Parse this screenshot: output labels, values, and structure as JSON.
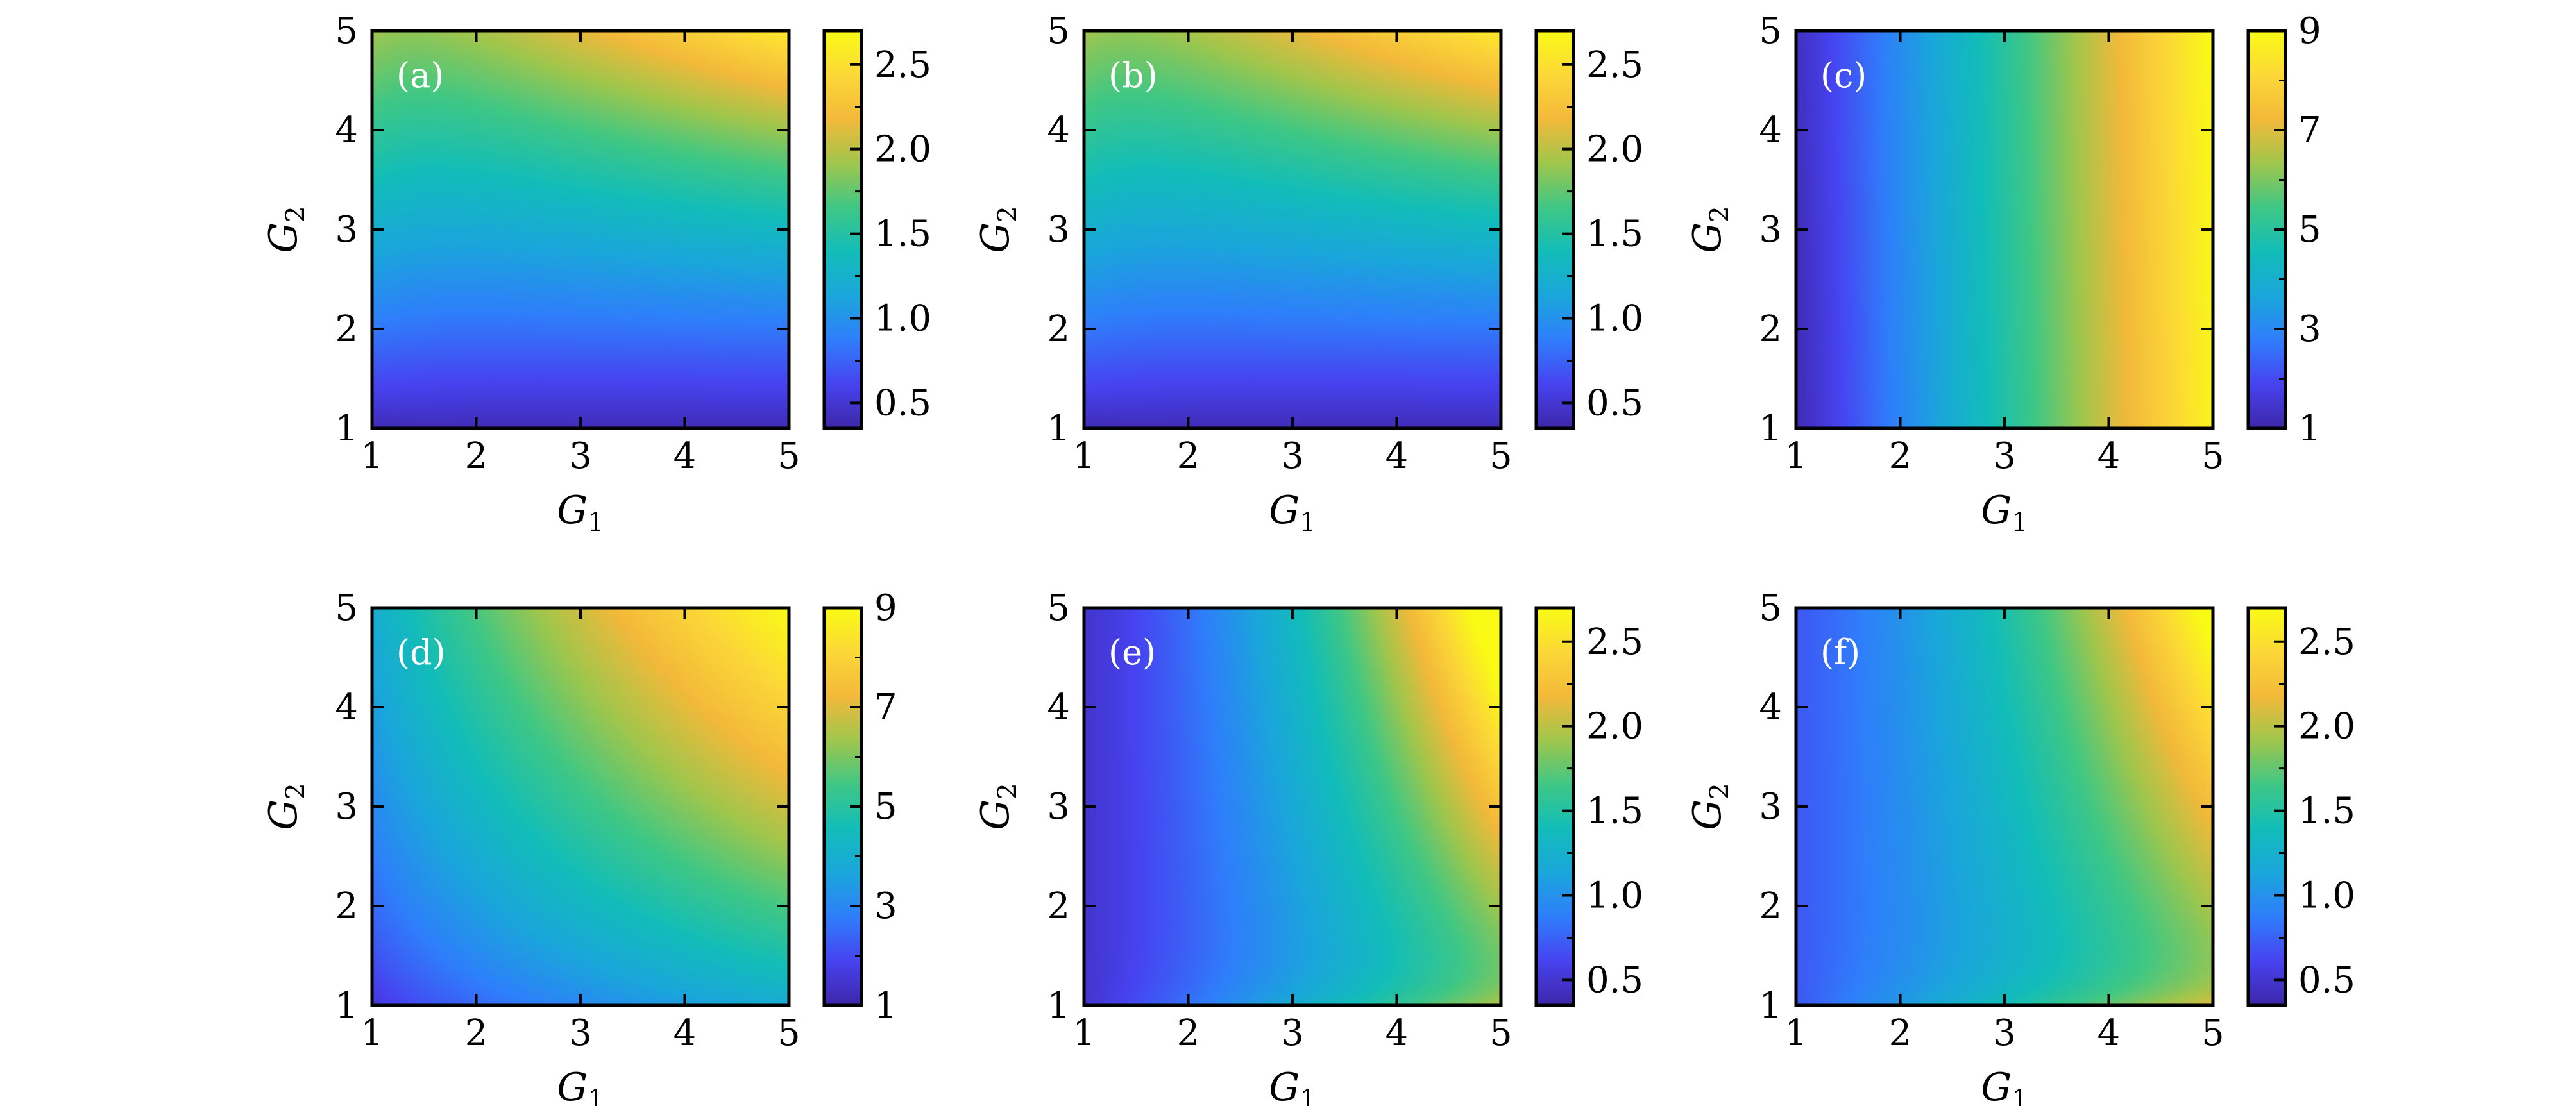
{
  "chart_data": [
    {
      "type": "heatmap",
      "panel_label": "(a)",
      "pattern": "a",
      "xlabel": "G",
      "xlabel_sub": "1",
      "ylabel": "G",
      "ylabel_sub": "2",
      "xlim": [
        1,
        5
      ],
      "ylim": [
        1,
        5
      ],
      "xticks": [
        "1",
        "2",
        "3",
        "4",
        "5"
      ],
      "yticks": [
        "1",
        "2",
        "3",
        "4",
        "5"
      ],
      "colorbar": {
        "range": [
          0.35,
          2.7
        ],
        "ticks": [
          0.5,
          1.0,
          1.5,
          2.0,
          2.5
        ],
        "tick_labels": [
          "0.5",
          "1.0",
          "1.5",
          "2.0",
          "2.5"
        ]
      }
    },
    {
      "type": "heatmap",
      "panel_label": "(b)",
      "pattern": "a",
      "xlabel": "G",
      "xlabel_sub": "1",
      "ylabel": "G",
      "ylabel_sub": "2",
      "xlim": [
        1,
        5
      ],
      "ylim": [
        1,
        5
      ],
      "xticks": [
        "1",
        "2",
        "3",
        "4",
        "5"
      ],
      "yticks": [
        "1",
        "2",
        "3",
        "4",
        "5"
      ],
      "colorbar": {
        "range": [
          0.35,
          2.7
        ],
        "ticks": [
          0.5,
          1.0,
          1.5,
          2.0,
          2.5
        ],
        "tick_labels": [
          "0.5",
          "1.0",
          "1.5",
          "2.0",
          "2.5"
        ]
      }
    },
    {
      "type": "heatmap",
      "panel_label": "(c)",
      "pattern": "c",
      "xlabel": "G",
      "xlabel_sub": "1",
      "ylabel": "G",
      "ylabel_sub": "2",
      "xlim": [
        1,
        5
      ],
      "ylim": [
        1,
        5
      ],
      "xticks": [
        "1",
        "2",
        "3",
        "4",
        "5"
      ],
      "yticks": [
        "1",
        "2",
        "3",
        "4",
        "5"
      ],
      "colorbar": {
        "range": [
          1,
          9
        ],
        "ticks": [
          1,
          3,
          5,
          7,
          9
        ],
        "tick_labels": [
          "1",
          "3",
          "5",
          "7",
          "9"
        ]
      }
    },
    {
      "type": "heatmap",
      "panel_label": "(d)",
      "pattern": "d",
      "xlabel": "G",
      "xlabel_sub": "1",
      "ylabel": "G",
      "ylabel_sub": "2",
      "xlim": [
        1,
        5
      ],
      "ylim": [
        1,
        5
      ],
      "xticks": [
        "1",
        "2",
        "3",
        "4",
        "5"
      ],
      "yticks": [
        "1",
        "2",
        "3",
        "4",
        "5"
      ],
      "colorbar": {
        "range": [
          1,
          9
        ],
        "ticks": [
          1,
          3,
          5,
          7,
          9
        ],
        "tick_labels": [
          "1",
          "3",
          "5",
          "7",
          "9"
        ]
      }
    },
    {
      "type": "heatmap",
      "panel_label": "(e)",
      "pattern": "e",
      "xlabel": "G",
      "xlabel_sub": "1",
      "ylabel": "G",
      "ylabel_sub": "2",
      "xlim": [
        1,
        5
      ],
      "ylim": [
        1,
        5
      ],
      "xticks": [
        "1",
        "2",
        "3",
        "4",
        "5"
      ],
      "yticks": [
        "1",
        "2",
        "3",
        "4",
        "5"
      ],
      "colorbar": {
        "range": [
          0.35,
          2.7
        ],
        "ticks": [
          0.5,
          1.0,
          1.5,
          2.0,
          2.5
        ],
        "tick_labels": [
          "0.5",
          "1.0",
          "1.5",
          "2.0",
          "2.5"
        ]
      }
    },
    {
      "type": "heatmap",
      "panel_label": "(f)",
      "pattern": "f",
      "xlabel": "G",
      "xlabel_sub": "1",
      "ylabel": "G",
      "ylabel_sub": "2",
      "xlim": [
        1,
        5
      ],
      "ylim": [
        1,
        5
      ],
      "xticks": [
        "1",
        "2",
        "3",
        "4",
        "5"
      ],
      "yticks": [
        "1",
        "2",
        "3",
        "4",
        "5"
      ],
      "colorbar": {
        "range": [
          0.35,
          2.7
        ],
        "ticks": [
          0.5,
          1.0,
          1.5,
          2.0,
          2.5
        ],
        "tick_labels": [
          "0.5",
          "1.0",
          "1.5",
          "2.0",
          "2.5"
        ]
      }
    }
  ],
  "colormap": [
    "#3e26a8",
    "#4743f0",
    "#2f7efb",
    "#1aa6db",
    "#12bdb9",
    "#3fc785",
    "#a0c64c",
    "#f3b93a",
    "#fcd837",
    "#f9fb15"
  ]
}
